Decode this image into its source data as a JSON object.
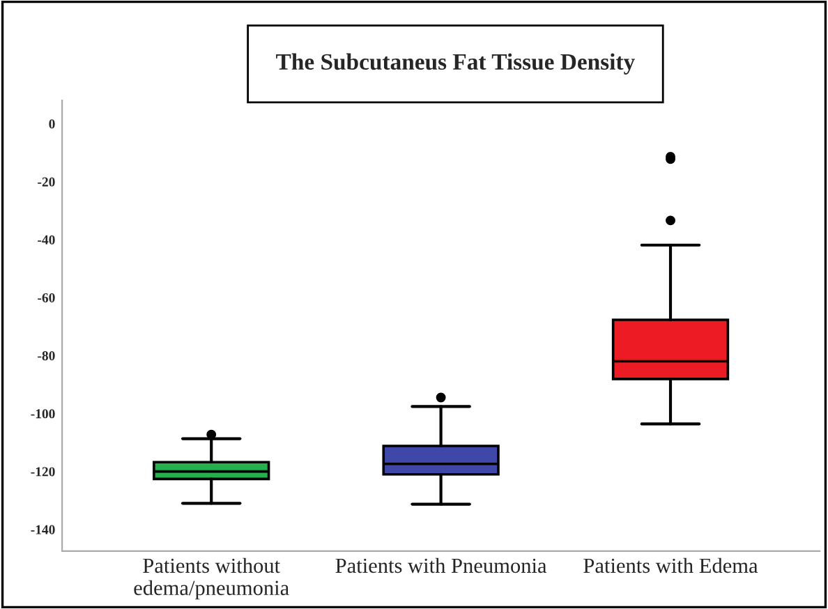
{
  "chart_data": {
    "type": "box",
    "title": "The Subcutaneus Fat Tissue Density",
    "categories": [
      "Patients without\nedema/pneumonia",
      "Patients with Pneumonia",
      "Patients with Edema"
    ],
    "colors": [
      "#22b14c",
      "#3f48a8",
      "#ed1c24"
    ],
    "boxes": [
      {
        "low": -131,
        "q1": -122.6,
        "median": -120,
        "q3": -116.8,
        "high": -108.7,
        "outliers": [
          -107.3
        ]
      },
      {
        "low": -131.3,
        "q1": -121,
        "median": -117.4,
        "q3": -111.2,
        "high": -97.6,
        "outliers": [
          -94.5
        ]
      },
      {
        "low": -103.6,
        "q1": -88.1,
        "median": -82,
        "q3": -67.7,
        "high": -41.9,
        "outliers": [
          -11.4,
          -12.2,
          -33.4
        ]
      }
    ],
    "ylim": [
      -147.5,
      8
    ],
    "yticks": [
      0,
      -20,
      -40,
      -60,
      -80,
      -100,
      -120,
      -140
    ],
    "grid": false
  }
}
